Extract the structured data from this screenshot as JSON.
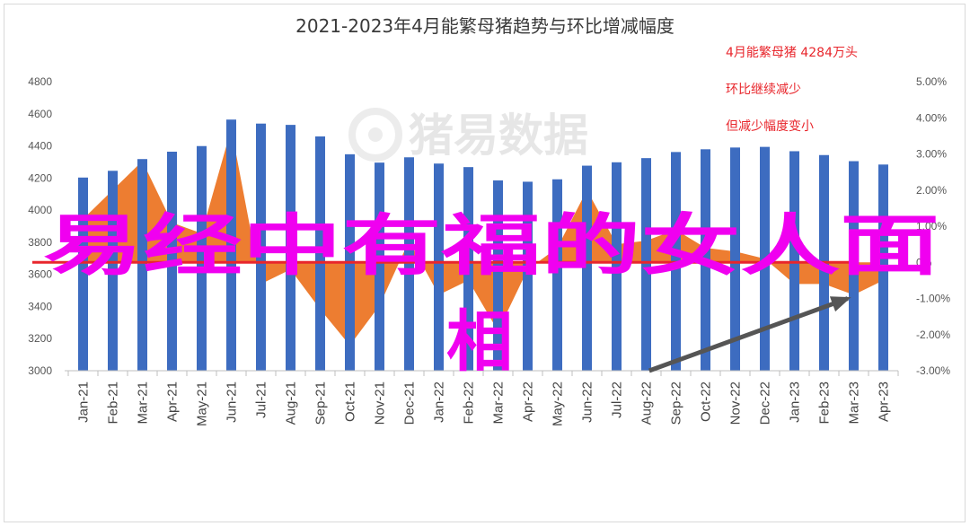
{
  "chart_data": {
    "type": "bar",
    "title": "2021-2023年4月能繁母猪趋势与环比增减幅度",
    "categories": [
      "Jan-21",
      "Feb-21",
      "Mar-21",
      "Apr-21",
      "May-21",
      "Jun-21",
      "Jul-21",
      "Aug-21",
      "Sep-21",
      "Oct-21",
      "Nov-21",
      "Dec-21",
      "Jan-22",
      "Feb-22",
      "Mar-22",
      "Apr-22",
      "May-22",
      "Jun-22",
      "Jul-22",
      "Aug-22",
      "Sep-22",
      "Oct-22",
      "Nov-22",
      "Dec-22",
      "Jan-23",
      "Feb-23",
      "Mar-23",
      "Apr-23"
    ],
    "series": [
      {
        "type": "bar",
        "axis": "left",
        "color": "#3d6cc0",
        "values": [
          4203,
          4245,
          4318,
          4364,
          4399,
          4564,
          4539,
          4531,
          4459,
          4348,
          4296,
          4329,
          4290,
          4268,
          4185,
          4177,
          4192,
          4277,
          4298,
          4324,
          4362,
          4379,
          4390,
          4394,
          4367,
          4343,
          4305,
          4284
        ]
      },
      {
        "type": "area",
        "axis": "right",
        "color": "#ed7d31",
        "values": [
          1.2,
          2.0,
          2.8,
          1.1,
          0.8,
          3.7,
          -0.6,
          -0.2,
          -1.3,
          -2.3,
          -1.2,
          0.6,
          -0.9,
          -0.5,
          -1.9,
          -0.2,
          0.4,
          2.0,
          0.5,
          0.6,
          0.9,
          0.4,
          0.3,
          0.1,
          -0.6,
          -0.6,
          -0.9,
          -0.5
        ]
      }
    ],
    "reference_line": {
      "value": 0,
      "axis": "right",
      "color": "#e8262c"
    },
    "y_left": {
      "min": 3000,
      "max": 4800,
      "ticks": [
        "3000",
        "3200",
        "3400",
        "3600",
        "3800",
        "4000",
        "4200",
        "4400",
        "4600",
        "4800"
      ]
    },
    "y_right": {
      "min": -3,
      "max": 5,
      "ticks": [
        "-3.00%",
        "-2.00%",
        "-1.00%",
        "0%",
        "1.00%",
        "2.00%",
        "3.00%",
        "4.00%",
        "5.00%"
      ]
    },
    "annotations": [
      "4月能繁母猪 4284万头",
      "环比继续减少",
      "但减少幅度变小"
    ],
    "arrow": {
      "color": "#555555",
      "from_index": 19.1,
      "from_value": 3000,
      "to_index": 25.8,
      "to_value": 3450
    },
    "grid": false,
    "legend": "none"
  },
  "watermark": "猪易数据",
  "overlay_text": {
    "line1": "易经中有福的女人面",
    "line2": "相"
  }
}
